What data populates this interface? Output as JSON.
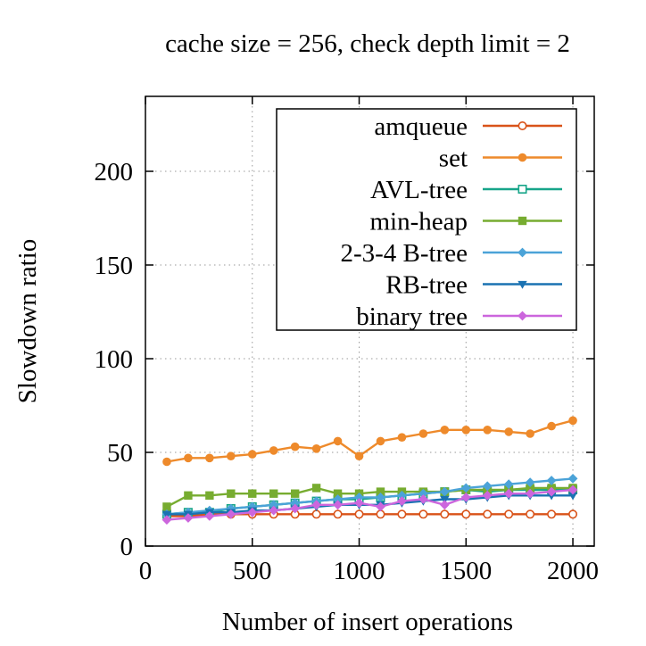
{
  "chart_data": {
    "type": "line",
    "title": "cache size = 256, check depth limit = 2",
    "xlabel": "Number of insert operations",
    "ylabel": "Slowdown ratio",
    "xlim": [
      0,
      2100
    ],
    "ylim": [
      0,
      240
    ],
    "xticks": [
      0,
      500,
      1000,
      1500,
      2000
    ],
    "yticks": [
      0,
      50,
      100,
      150,
      200
    ],
    "xtick_labels": [
      "0",
      "500",
      "1000",
      "1500",
      "2000"
    ],
    "ytick_labels": [
      "0",
      "50",
      "100",
      "150",
      "200"
    ],
    "grid": true,
    "legend_position": "top-right",
    "x": [
      100,
      200,
      300,
      400,
      500,
      600,
      700,
      800,
      900,
      1000,
      1100,
      1200,
      1300,
      1400,
      1500,
      1600,
      1700,
      1800,
      1900,
      2000
    ],
    "series": [
      {
        "name": "amqueue",
        "color": "#d95319",
        "marker": "circle-open",
        "values": [
          16,
          16,
          17,
          17,
          17,
          17,
          17,
          17,
          17,
          17,
          17,
          17,
          17,
          17,
          17,
          17,
          17,
          17,
          17,
          17
        ]
      },
      {
        "name": "set",
        "color": "#ee8a2b",
        "marker": "circle-filled",
        "values": [
          45,
          47,
          47,
          48,
          49,
          51,
          53,
          52,
          56,
          48,
          56,
          58,
          60,
          62,
          62,
          62,
          61,
          60,
          64,
          67
        ]
      },
      {
        "name": "AVL-tree",
        "color": "#17a589",
        "marker": "square-open",
        "values": [
          17,
          18,
          18,
          20,
          21,
          22,
          23,
          24,
          25,
          25,
          26,
          27,
          28,
          29,
          30,
          29,
          30,
          30,
          30,
          30
        ]
      },
      {
        "name": "min-heap",
        "color": "#77ac30",
        "marker": "square-filled",
        "values": [
          21,
          27,
          27,
          28,
          28,
          28,
          28,
          31,
          28,
          28,
          29,
          29,
          29,
          29,
          30,
          30,
          30,
          31,
          31,
          31
        ]
      },
      {
        "name": "2-3-4 B-tree",
        "color": "#4ba3d8",
        "marker": "diamond-filled",
        "values": [
          17,
          18,
          19,
          20,
          21,
          22,
          23,
          24,
          25,
          26,
          26,
          27,
          28,
          29,
          31,
          32,
          33,
          34,
          35,
          36
        ]
      },
      {
        "name": "RB-tree",
        "color": "#1a72b2",
        "marker": "triangle-down-filled",
        "values": [
          17,
          17,
          18,
          18,
          19,
          19,
          20,
          21,
          22,
          22,
          22,
          23,
          24,
          25,
          25,
          26,
          27,
          27,
          27,
          27
        ]
      },
      {
        "name": "binary tree",
        "color": "#cc66dd",
        "marker": "diamond-filled",
        "values": [
          14,
          15,
          16,
          17,
          18,
          19,
          20,
          22,
          22,
          23,
          21,
          24,
          25,
          22,
          26,
          27,
          28,
          28,
          29,
          30
        ]
      }
    ]
  }
}
